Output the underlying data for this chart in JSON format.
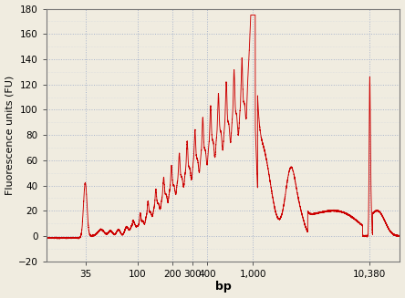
{
  "title": "",
  "xlabel": "bp",
  "ylabel": "Fluorescence units (FU)",
  "xlim_log": [
    16,
    19000
  ],
  "ylim": [
    -20,
    180
  ],
  "yticks": [
    -20,
    0,
    20,
    40,
    60,
    80,
    100,
    120,
    140,
    160,
    180
  ],
  "xtick_positions": [
    35,
    100,
    200,
    300,
    400,
    1000,
    10380
  ],
  "xtick_labels": [
    "35",
    "100",
    "200",
    "300",
    "400",
    "1,000",
    "10,380"
  ],
  "line_color": "#cc0000",
  "background_color": "#f0ece0",
  "grid_major_color": "#a8b4cc",
  "grid_minor_color": "#c8d0de"
}
